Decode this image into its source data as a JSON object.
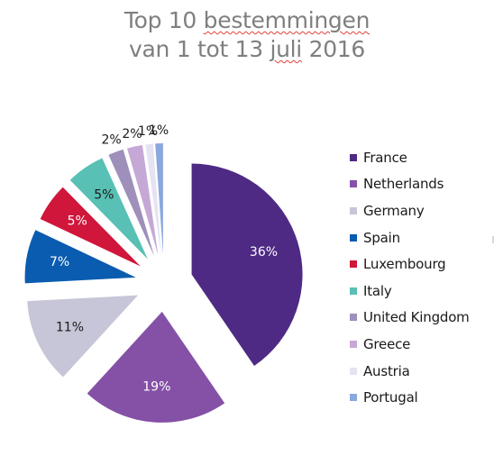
{
  "title": {
    "line1_prefix": "Top 10 ",
    "line1_flagged": "bestemmingen",
    "line2_prefix": "van 1 tot 13 ",
    "line2_flagged": "juli",
    "line2_suffix": " 2016"
  },
  "chart_data": {
    "type": "pie",
    "title": "Top 10 bestemmingen van 1 tot 13 juli 2016",
    "legend_position": "right",
    "slices": [
      {
        "name": "France",
        "value": 36,
        "label": "36%",
        "color": "#4e2a84",
        "label_color": "#ffffff"
      },
      {
        "name": "Netherlands",
        "value": 19,
        "label": "19%",
        "color": "#8551a6",
        "label_color": "#ffffff"
      },
      {
        "name": "Germany",
        "value": 11,
        "label": "11%",
        "color": "#c7c6d8",
        "label_color": "#1a1a1a"
      },
      {
        "name": "Spain",
        "value": 7,
        "label": "7%",
        "color": "#0a5cb0",
        "label_color": "#ffffff"
      },
      {
        "name": "Luxembourg",
        "value": 5,
        "label": "5%",
        "color": "#d0163a",
        "label_color": "#ffffff"
      },
      {
        "name": "Italy",
        "value": 5,
        "label": "5%",
        "color": "#58c0b4",
        "label_color": "#1a1a1a"
      },
      {
        "name": "United Kingdom",
        "value": 2,
        "label": "2%",
        "color": "#9e8fbb",
        "label_color": "#1a1a1a"
      },
      {
        "name": "Greece",
        "value": 2,
        "label": "2%",
        "color": "#c5a8d6",
        "label_color": "#1a1a1a"
      },
      {
        "name": "Austria",
        "value": 1,
        "label": "1%",
        "color": "#e5e3f1",
        "label_color": "#1a1a1a"
      },
      {
        "name": "Portugal",
        "value": 1,
        "label": "1%",
        "color": "#8aa8de",
        "label_color": "#1a1a1a"
      }
    ]
  }
}
